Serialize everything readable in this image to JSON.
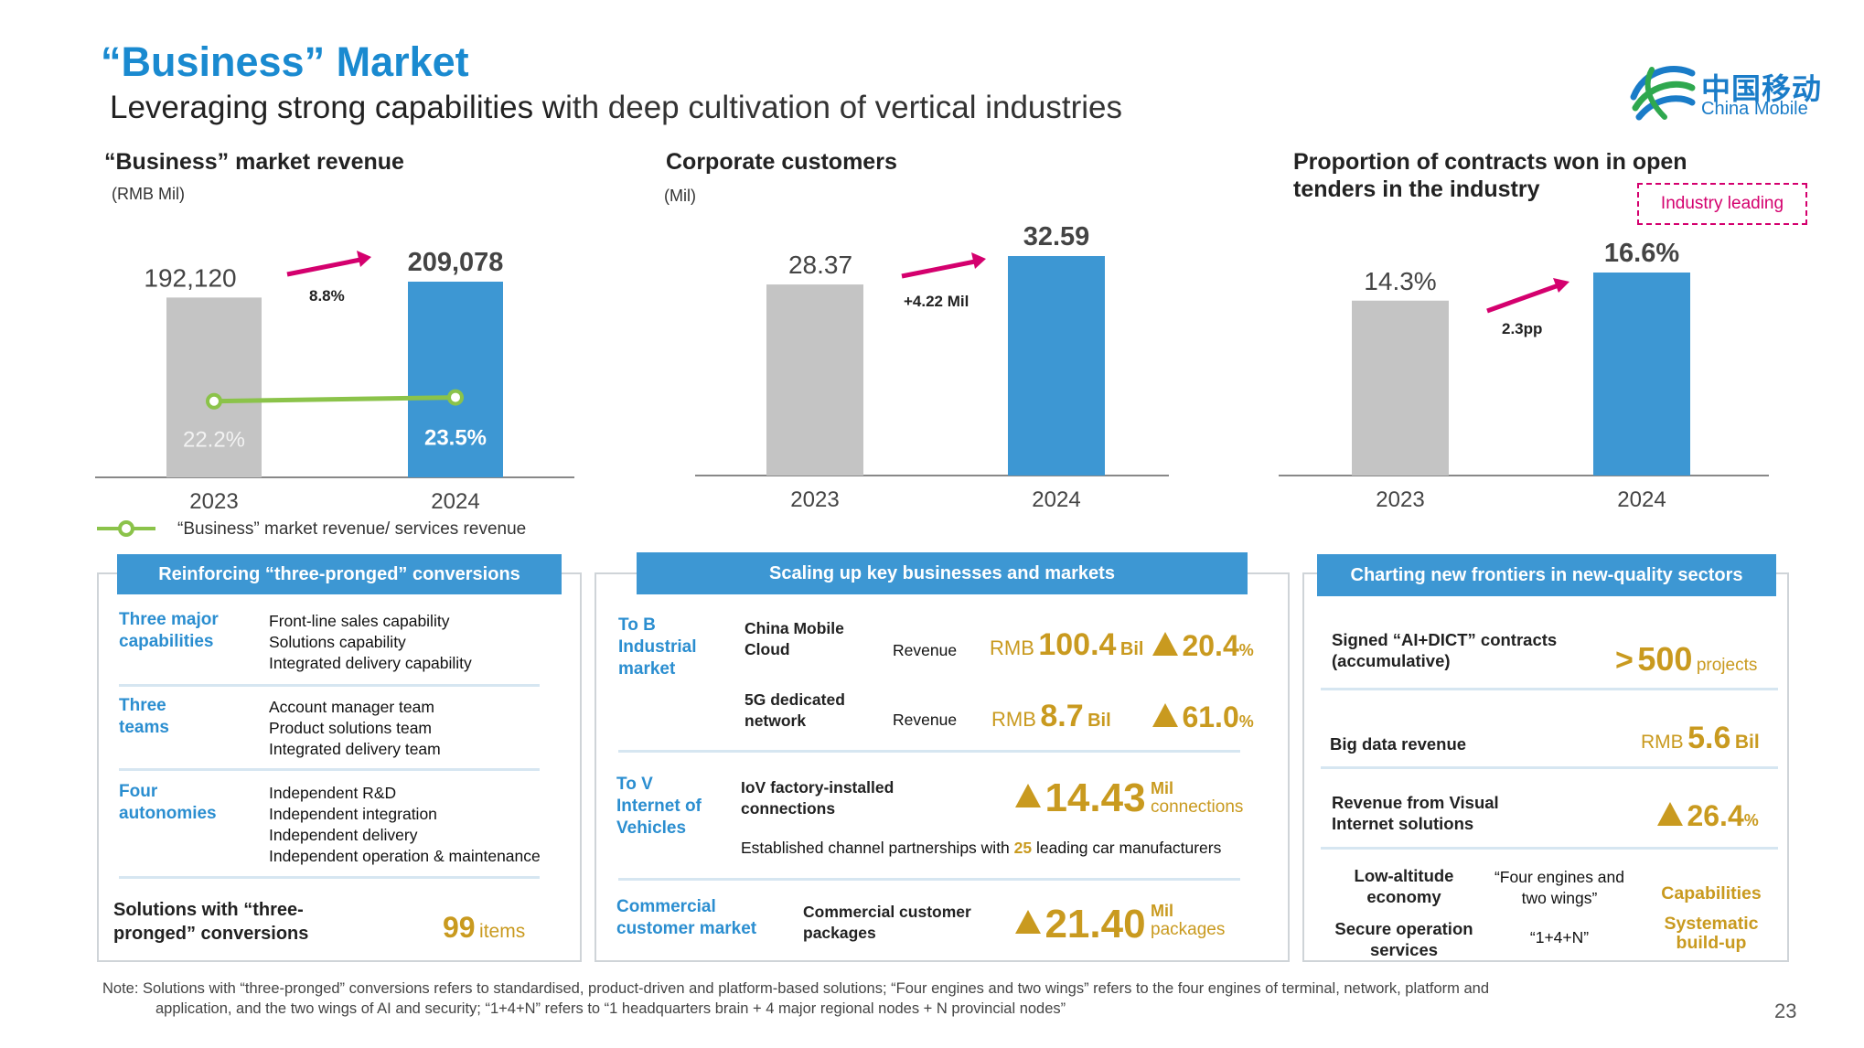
{
  "header": {
    "title": "“Business” Market",
    "subtitle_bold": "Leveraging strong capabilities w",
    "subtitle_rest": "ith deep cultivation of vertical industries",
    "logo_cn": "中国移动",
    "logo_en": "China Mobile"
  },
  "charts": {
    "revenue": {
      "title": "“Business” market revenue",
      "unit": "(RMB Mil)",
      "growth": "8.8%",
      "legend": "“Business” market revenue/ services revenue"
    },
    "customers": {
      "title": "Corporate customers",
      "unit": "(Mil)",
      "growth": "+4.22 Mil"
    },
    "contracts": {
      "title_line1": "Proportion of contracts won in open",
      "title_line2": "tenders in the industry",
      "tag": "Industry leading",
      "growth": "2.3pp"
    }
  },
  "chart_data": [
    {
      "type": "bar",
      "title": "“Business” market revenue",
      "categories": [
        "2023",
        "2024"
      ],
      "values": [
        192120,
        209078
      ],
      "value_labels": [
        "192,120",
        "209,078"
      ],
      "ylabel": "(RMB Mil)",
      "colors": [
        "#c4c4c4",
        "#3d97d3"
      ],
      "line_series": {
        "name": "“Business” market revenue/ services revenue",
        "values": [
          22.2,
          23.5
        ],
        "labels": [
          "22.2%",
          "23.5%"
        ],
        "color": "#8bc34a"
      }
    },
    {
      "type": "bar",
      "title": "Corporate customers",
      "categories": [
        "2023",
        "2024"
      ],
      "values": [
        28.37,
        32.59
      ],
      "value_labels": [
        "28.37",
        "32.59"
      ],
      "ylabel": "(Mil)",
      "colors": [
        "#c4c4c4",
        "#3d97d3"
      ]
    },
    {
      "type": "bar",
      "title": "Proportion of contracts won in open tenders in the industry",
      "categories": [
        "2023",
        "2024"
      ],
      "values": [
        14.3,
        16.6
      ],
      "value_labels": [
        "14.3%",
        "16.6%"
      ],
      "colors": [
        "#c4c4c4",
        "#3d97d3"
      ]
    }
  ],
  "panel1": {
    "head": "Reinforcing “three-pronged” conversions",
    "rows": [
      {
        "label": "Three major capabilities",
        "lines": [
          "Front-line sales capability",
          "Solutions capability",
          "Integrated delivery capability"
        ]
      },
      {
        "label": "Three teams",
        "lines": [
          "Account manager team",
          "Product solutions team",
          "Integrated delivery team"
        ]
      },
      {
        "label": "Four autonomies",
        "lines": [
          "Independent R&D",
          "Independent integration",
          "Independent delivery",
          "Independent operation & maintenance"
        ]
      }
    ],
    "solutions_label": "Solutions with “three-pronged” conversions",
    "solutions_value": "99",
    "solutions_unit": "items"
  },
  "panel2": {
    "head": "Scaling up key businesses and markets",
    "tob_label": "To B Industrial market",
    "cloud_name": "China Mobile Cloud",
    "cloud_metric": "Revenue",
    "cloud_prefix": "RMB",
    "cloud_value": "100.4",
    "cloud_unit": "Bil",
    "cloud_growth": "20.4",
    "dedicated_name": "5G dedicated network",
    "dedicated_metric": "Revenue",
    "dedicated_prefix": "RMB",
    "dedicated_value": "8.7",
    "dedicated_unit": "Bil",
    "dedicated_growth": "61.0",
    "pct": "%",
    "tov_label": "To V Internet of Vehicles",
    "iov_name": "IoV factory-installed connections",
    "iov_value": "14.43",
    "iov_unit1": "Mil",
    "iov_unit2": "connections",
    "partner_pre": "Established channel partnerships with",
    "partner_num": "25",
    "partner_post": "leading car manufacturers",
    "comm_label": "Commercial customer market",
    "comm_name": "Commercial customer packages",
    "comm_value": "21.40",
    "comm_unit1": "Mil",
    "comm_unit2": "packages"
  },
  "panel3": {
    "head": "Charting new frontiers in new-quality sectors",
    "signed_label": "Signed “AI+DICT” contracts (accumulative)",
    "signed_prefix": ">",
    "signed_value": "500",
    "signed_unit": "projects",
    "bigdata_label": "Big data revenue",
    "bigdata_prefix": "RMB",
    "bigdata_value": "5.6",
    "bigdata_unit": "Bil",
    "visual_label": "Revenue from Visual Internet solutions",
    "visual_growth": "26.4",
    "pct": "%",
    "low_alt": "Low-altitude economy",
    "four_engines": "“Four engines and two wings”",
    "capabilities": "Capabilities",
    "secure": "Secure operation services",
    "one_four_n": "“1+4+N”",
    "systematic": "Systematic build-up"
  },
  "footer": {
    "note_line1": "Note:  Solutions with “three-pronged” conversions refers to standardised, product-driven and platform-based solutions; “Four engines and two wings” refers to the four engines of terminal, network, platform and",
    "note_line2": "application, and the two wings of AI and security;  “1+4+N” refers to “1 headquarters brain + 4 major regional nodes + N provincial nodes”",
    "page": "23"
  }
}
